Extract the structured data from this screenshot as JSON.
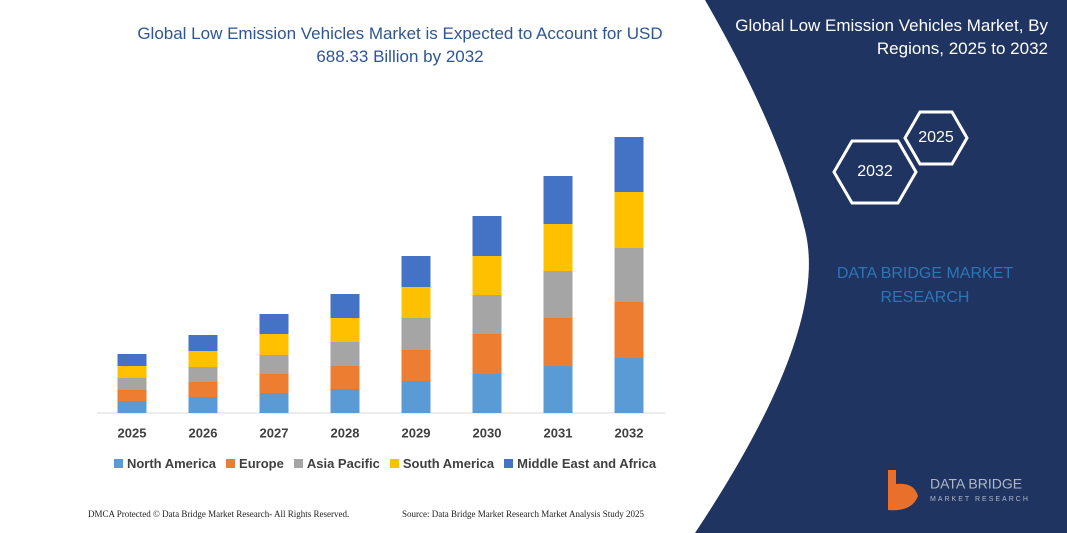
{
  "chart_data": {
    "type": "stacked_bar",
    "title": "Global Low Emission Vehicles Market is Expected to Account for USD 688.33 Billion by 2032",
    "categories": [
      "2025",
      "2026",
      "2027",
      "2028",
      "2029",
      "2030",
      "2031",
      "2032"
    ],
    "series": [
      {
        "name": "North America",
        "color": "#5b9bd5",
        "values": [
          12,
          16,
          20,
          24,
          32,
          39,
          47,
          55
        ]
      },
      {
        "name": "Europe",
        "color": "#ed7d31",
        "values": [
          11,
          15,
          19,
          23,
          31,
          40,
          48,
          56
        ]
      },
      {
        "name": "Asia Pacific",
        "color": "#a5a5a5",
        "values": [
          12,
          15,
          19,
          24,
          32,
          39,
          47,
          54
        ]
      },
      {
        "name": "South America",
        "color": "#ffc000",
        "values": [
          12,
          16,
          21,
          24,
          31,
          39,
          47,
          56
        ]
      },
      {
        "name": "Middle East and Africa",
        "color": "#4472c4",
        "values": [
          12,
          16,
          20,
          24,
          31,
          40,
          48,
          55
        ]
      }
    ],
    "ylim": [
      0,
      300
    ]
  },
  "panel": {
    "title": "Global Low Emission Vehicles Market, By Regions, 2025 to 2032",
    "hexagons": [
      "2025",
      "2032"
    ],
    "brand": "DATA BRIDGE MARKET RESEARCH",
    "logo": {
      "name": "DATA BRIDGE",
      "tagline": "MARKET RESEARCH"
    }
  },
  "footer": {
    "left": "DMCA Protected © Data Bridge Market Research- All Rights Reserved.",
    "right": "Source: Data Bridge Market Research Market Analysis Study 2025"
  }
}
